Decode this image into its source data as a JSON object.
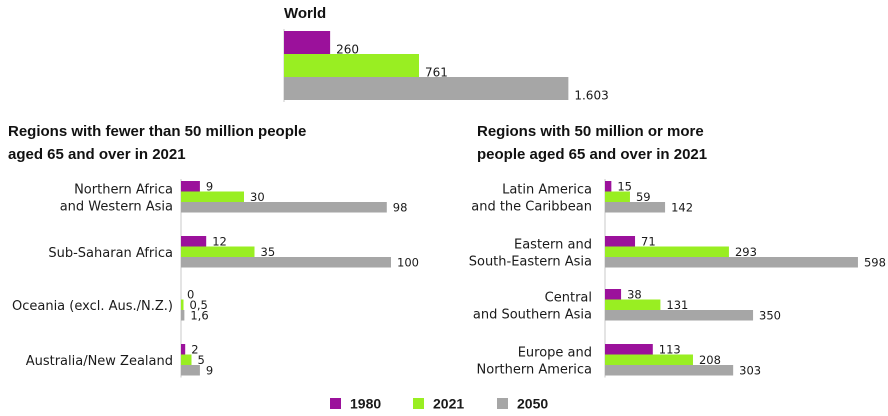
{
  "colors": {
    "1980": "#9b119b",
    "2021": "#99ee22",
    "2050": "#a6a6a6",
    "axis": "#c8c8c8"
  },
  "legend": [
    "1980",
    "2021",
    "2050"
  ],
  "chart_data": [
    {
      "type": "bar",
      "orientation": "horizontal",
      "title": "World",
      "categories": [
        "World"
      ],
      "series": [
        {
          "name": "1980",
          "values": [
            260
          ],
          "labels": [
            "260"
          ]
        },
        {
          "name": "2021",
          "values": [
            761
          ],
          "labels": [
            "761"
          ]
        },
        {
          "name": "2050",
          "values": [
            1603
          ],
          "labels": [
            "1.603"
          ]
        }
      ],
      "unit": "millions"
    },
    {
      "type": "bar",
      "orientation": "horizontal",
      "title_lines": [
        "Regions with fewer than 50 million people",
        "aged 65 and over in 2021"
      ],
      "categories": [
        [
          "Northern Africa",
          "and Western Asia"
        ],
        [
          "Sub-Saharan Africa"
        ],
        [
          "Oceania (excl. Aus./N.Z.)"
        ],
        [
          "Australia/New Zealand"
        ]
      ],
      "series": [
        {
          "name": "1980",
          "values": [
            9,
            12,
            0,
            2
          ],
          "labels": [
            "9",
            "12",
            "0",
            "2"
          ]
        },
        {
          "name": "2021",
          "values": [
            30,
            35,
            0.5,
            5
          ],
          "labels": [
            "30",
            "35",
            "0,5",
            "5"
          ]
        },
        {
          "name": "2050",
          "values": [
            98,
            100,
            1.6,
            9
          ],
          "labels": [
            "98",
            "100",
            "1,6",
            "9"
          ]
        }
      ],
      "unit": "millions"
    },
    {
      "type": "bar",
      "orientation": "horizontal",
      "title_lines": [
        "Regions with 50 million or more",
        "people aged 65 and over  in 2021"
      ],
      "categories": [
        [
          "Latin America",
          "and the Caribbean"
        ],
        [
          "Eastern and",
          "South-Eastern Asia"
        ],
        [
          "Central",
          "and Southern Asia"
        ],
        [
          "Europe and",
          "Northern America"
        ]
      ],
      "series": [
        {
          "name": "1980",
          "values": [
            15,
            71,
            38,
            113
          ],
          "labels": [
            "15",
            "71",
            "38",
            "113"
          ]
        },
        {
          "name": "2021",
          "values": [
            59,
            293,
            131,
            208
          ],
          "labels": [
            "59",
            "293",
            "131",
            "208"
          ]
        },
        {
          "name": "2050",
          "values": [
            142,
            598,
            350,
            303
          ],
          "labels": [
            "142",
            "598",
            "350",
            "303"
          ]
        }
      ],
      "unit": "millions"
    }
  ]
}
